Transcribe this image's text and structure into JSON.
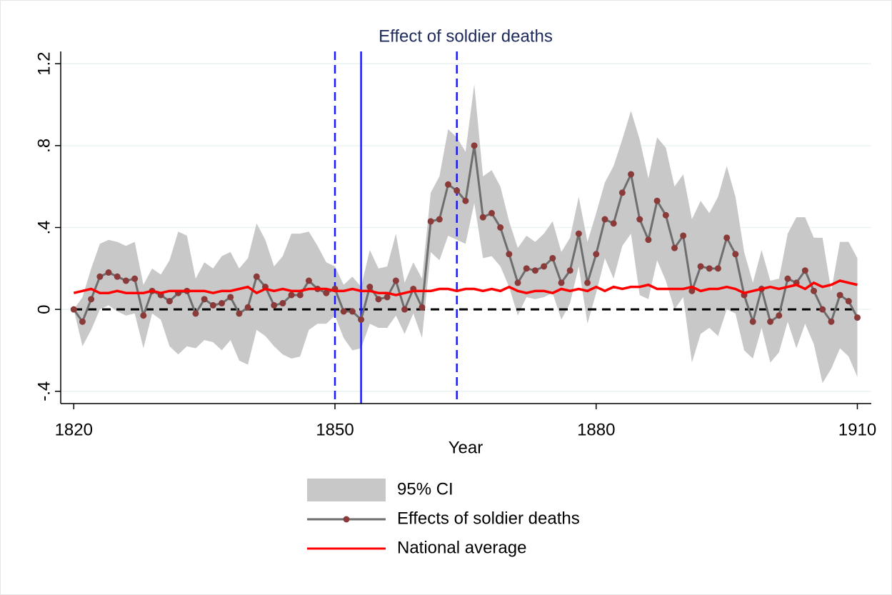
{
  "chart_data": {
    "type": "line",
    "title": "Effect of soldier deaths",
    "x_label": "Year",
    "x": [
      1820,
      1821,
      1822,
      1823,
      1824,
      1825,
      1826,
      1827,
      1828,
      1829,
      1830,
      1831,
      1832,
      1833,
      1834,
      1835,
      1836,
      1837,
      1838,
      1839,
      1840,
      1841,
      1842,
      1843,
      1844,
      1845,
      1846,
      1847,
      1848,
      1849,
      1850,
      1851,
      1852,
      1853,
      1854,
      1855,
      1856,
      1857,
      1858,
      1859,
      1860,
      1861,
      1862,
      1863,
      1864,
      1865,
      1866,
      1867,
      1868,
      1869,
      1870,
      1871,
      1872,
      1873,
      1874,
      1875,
      1876,
      1877,
      1878,
      1879,
      1880,
      1881,
      1882,
      1883,
      1884,
      1885,
      1886,
      1887,
      1888,
      1889,
      1890,
      1891,
      1892,
      1893,
      1894,
      1895,
      1896,
      1897,
      1898,
      1899,
      1900,
      1901,
      1902,
      1903,
      1904,
      1905,
      1906,
      1907,
      1908,
      1909,
      1910
    ],
    "series": [
      {
        "name": "95% CI",
        "type": "band",
        "color": "#c8c8c8",
        "upper": [
          0,
          0.06,
          0.2,
          0.32,
          0.34,
          0.33,
          0.31,
          0.33,
          0.12,
          0.2,
          0.17,
          0.24,
          0.38,
          0.36,
          0.15,
          0.23,
          0.2,
          0.26,
          0.28,
          0.2,
          0.25,
          0.42,
          0.34,
          0.21,
          0.26,
          0.37,
          0.37,
          0.38,
          0.31,
          0.23,
          0.21,
          0.12,
          0.16,
          0.11,
          0.29,
          0.2,
          0.21,
          0.37,
          0.13,
          0.23,
          0.15,
          0.57,
          0.65,
          0.88,
          0.84,
          0.77,
          1.1,
          0.65,
          0.68,
          0.6,
          0.43,
          0.3,
          0.36,
          0.33,
          0.37,
          0.43,
          0.28,
          0.35,
          0.55,
          0.33,
          0.47,
          0.62,
          0.7,
          0.83,
          0.97,
          0.83,
          0.64,
          0.84,
          0.79,
          0.6,
          0.66,
          0.44,
          0.53,
          0.47,
          0.55,
          0.7,
          0.55,
          0.28,
          0.13,
          0.29,
          0.14,
          0.15,
          0.37,
          0.45,
          0.45,
          0.35,
          0.35,
          0.09,
          0.33,
          0.33,
          0.25
        ],
        "lower": [
          0,
          -0.18,
          -0.1,
          0,
          0.02,
          -0.01,
          -0.03,
          -0.02,
          -0.19,
          -0.02,
          -0.05,
          -0.18,
          -0.22,
          -0.18,
          -0.19,
          -0.15,
          -0.16,
          -0.2,
          -0.15,
          -0.25,
          -0.27,
          -0.1,
          -0.13,
          -0.18,
          -0.22,
          -0.24,
          -0.23,
          -0.1,
          -0.07,
          -0.07,
          -0.03,
          -0.14,
          -0.2,
          -0.19,
          -0.07,
          -0.09,
          -0.09,
          -0.03,
          -0.12,
          -0.02,
          -0.14,
          0.28,
          0.24,
          0.36,
          0.34,
          0.32,
          0.52,
          0.25,
          0.26,
          0.21,
          0.11,
          -0.03,
          0.06,
          0.05,
          0.06,
          0.08,
          -0.05,
          0.03,
          0.21,
          -0.07,
          0.08,
          0.25,
          0.15,
          0.31,
          0.37,
          0.07,
          0.05,
          0.24,
          0.14,
          0,
          0.06,
          -0.26,
          -0.12,
          -0.09,
          -0.13,
          0,
          -0.02,
          -0.2,
          -0.24,
          -0.09,
          -0.26,
          -0.21,
          -0.06,
          -0.19,
          -0.07,
          -0.17,
          -0.36,
          -0.29,
          -0.19,
          -0.23,
          -0.33
        ]
      },
      {
        "name": "Effects of soldier deaths",
        "color": "#6e6e6e",
        "marker_color": "#8b3a3a",
        "values": [
          0,
          -0.06,
          0.05,
          0.16,
          0.18,
          0.16,
          0.14,
          0.15,
          -0.03,
          0.09,
          0.07,
          0.04,
          0.08,
          0.09,
          -0.02,
          0.05,
          0.02,
          0.03,
          0.06,
          -0.02,
          0.01,
          0.16,
          0.11,
          0.02,
          0.03,
          0.07,
          0.07,
          0.14,
          0.1,
          0.08,
          0.1,
          -0.01,
          -0.01,
          -0.05,
          0.11,
          0.05,
          0.06,
          0.14,
          0,
          0.1,
          0.01,
          0.43,
          0.44,
          0.61,
          0.58,
          0.53,
          0.8,
          0.45,
          0.47,
          0.4,
          0.27,
          0.13,
          0.2,
          0.19,
          0.21,
          0.25,
          0.13,
          0.19,
          0.37,
          0.13,
          0.27,
          0.44,
          0.42,
          0.57,
          0.66,
          0.44,
          0.34,
          0.53,
          0.46,
          0.3,
          0.36,
          0.09,
          0.21,
          0.2,
          0.2,
          0.35,
          0.27,
          0.07,
          -0.06,
          0.1,
          -0.06,
          -0.03,
          0.15,
          0.13,
          0.19,
          0.09,
          0,
          -0.06,
          0.07,
          0.04,
          -0.04
        ]
      },
      {
        "name": "National average",
        "color": "#ff0000",
        "values": [
          0.08,
          0.09,
          0.1,
          0.08,
          0.08,
          0.09,
          0.08,
          0.08,
          0.08,
          0.09,
          0.08,
          0.09,
          0.09,
          0.09,
          0.09,
          0.09,
          0.08,
          0.09,
          0.09,
          0.1,
          0.11,
          0.08,
          0.1,
          0.09,
          0.1,
          0.09,
          0.09,
          0.1,
          0.1,
          0.1,
          0.09,
          0.09,
          0.1,
          0.09,
          0.09,
          0.08,
          0.08,
          0.07,
          0.08,
          0.09,
          0.09,
          0.09,
          0.1,
          0.1,
          0.09,
          0.1,
          0.1,
          0.09,
          0.1,
          0.09,
          0.11,
          0.09,
          0.08,
          0.09,
          0.09,
          0.08,
          0.1,
          0.09,
          0.1,
          0.09,
          0.11,
          0.09,
          0.11,
          0.1,
          0.11,
          0.11,
          0.12,
          0.1,
          0.1,
          0.1,
          0.1,
          0.11,
          0.09,
          0.1,
          0.1,
          0.11,
          0.1,
          0.08,
          0.09,
          0.1,
          0.11,
          0.1,
          0.11,
          0.12,
          0.1,
          0.13,
          0.11,
          0.12,
          0.14,
          0.13,
          0.12
        ]
      }
    ],
    "xlim": [
      1818.5,
      1911.6
    ],
    "ylim": [
      -0.46,
      1.26
    ],
    "xticks": [
      1820,
      1850,
      1880,
      1910
    ],
    "yticks": [
      {
        "value": -0.4,
        "label": "-.4"
      },
      0,
      {
        "value": 0.4,
        "label": ".4"
      },
      {
        "value": 0.8,
        "label": ".8"
      },
      {
        "value": 1.2,
        "label": "1.2"
      }
    ],
    "grid": true,
    "vlines": [
      {
        "x": 1850,
        "color": "#1a1aff",
        "dashed": true
      },
      {
        "x": 1853,
        "color": "#1a1aff",
        "dashed": false
      },
      {
        "x": 1864,
        "color": "#1a1aff",
        "dashed": true
      }
    ],
    "hline": {
      "y": 0,
      "color": "#000000",
      "dashed": true
    },
    "legend": "bottom"
  }
}
